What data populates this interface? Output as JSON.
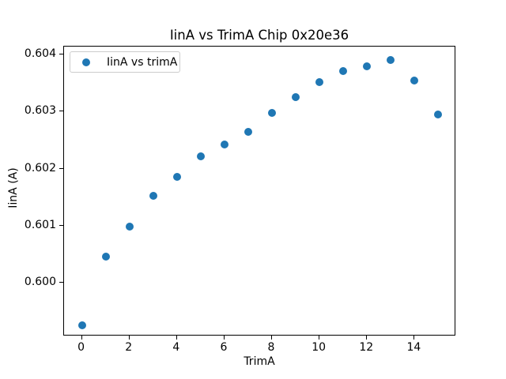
{
  "chart_data": {
    "type": "scatter",
    "title": "IinA vs TrimA Chip 0x20e36",
    "xlabel": "TrimA",
    "ylabel": "IinA (A)",
    "legend_entries": [
      "IinA vs trimA"
    ],
    "legend_position": "upper left",
    "marker_color": "#1f77b4",
    "grid": false,
    "x": [
      0,
      1,
      2,
      3,
      4,
      5,
      6,
      7,
      8,
      9,
      10,
      11,
      12,
      13,
      14,
      15
    ],
    "y": [
      0.59926,
      0.60046,
      0.60098,
      0.60152,
      0.60186,
      0.60222,
      0.60242,
      0.60265,
      0.60298,
      0.60326,
      0.60352,
      0.60371,
      0.60379,
      0.60391,
      0.60354,
      0.60295
    ],
    "xlim": [
      -0.75,
      15.75
    ],
    "ylim": [
      0.59906,
      0.60414
    ],
    "xticks": [
      0,
      2,
      4,
      6,
      8,
      10,
      12,
      14
    ],
    "xtick_labels": [
      "0",
      "2",
      "4",
      "6",
      "8",
      "10",
      "12",
      "14"
    ],
    "yticks": [
      0.6,
      0.601,
      0.602,
      0.603,
      0.604
    ],
    "ytick_labels": [
      "0.600",
      "0.601",
      "0.602",
      "0.603",
      "0.604"
    ]
  }
}
